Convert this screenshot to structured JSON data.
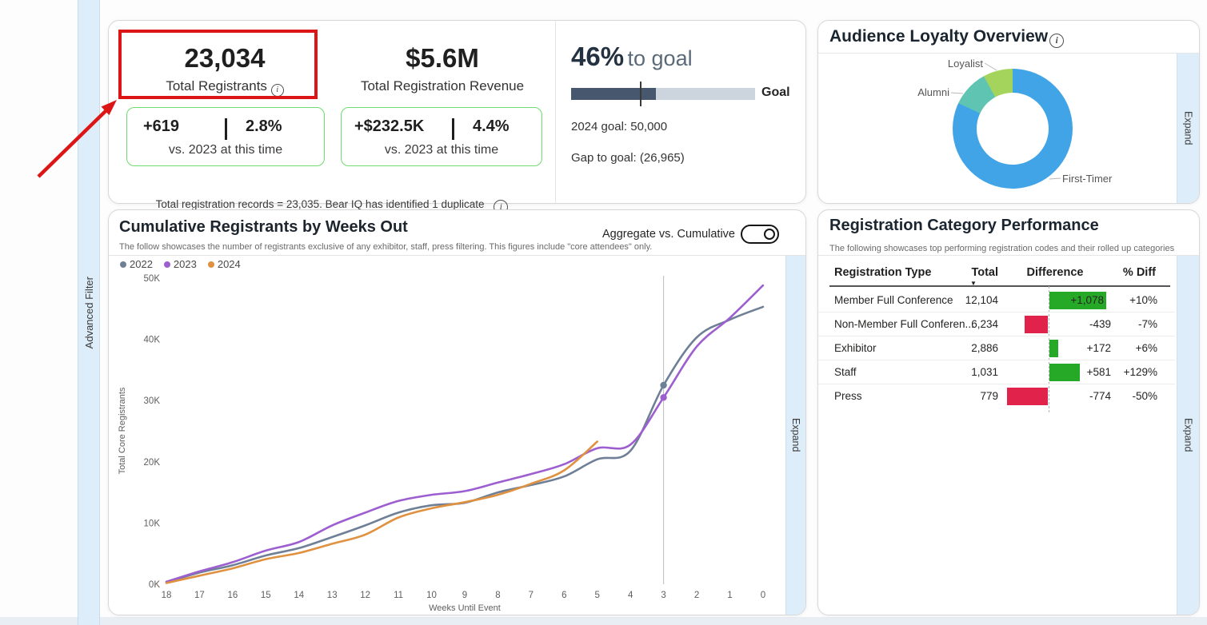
{
  "left_rail": {
    "label": "Advanced Filter"
  },
  "kpi_card": {
    "registrants": {
      "value": "23,034",
      "label": "Total Registrants",
      "delta": "+619",
      "delta_pct": "2.8%",
      "delta_caption": "vs. 2023 at this time"
    },
    "revenue": {
      "value": "$5.6M",
      "label": "Total Registration Revenue",
      "delta": "+$232.5K",
      "delta_pct": "4.4%",
      "delta_caption": "vs. 2023 at this time"
    },
    "footnote": "Total registration records = 23,035. Bear IQ has identified 1 duplicate"
  },
  "goal_card": {
    "percent": "46%",
    "suffix": "to goal",
    "fill_pct": 46,
    "bar_label": "Goal",
    "goal_line": "2024 goal: 50,000",
    "gap_line": "Gap to goal: (26,965)",
    "fill_color": "#47586e",
    "track_color": "#ccd4dd"
  },
  "loyalty_card": {
    "title": "Audience Loyalty Overview",
    "expand_label": "Expand",
    "segments": [
      {
        "label": "First-Timer",
        "value": 82,
        "color": "#41a4e6"
      },
      {
        "label": "Alumni",
        "value": 10,
        "color": "#5fc4b2"
      },
      {
        "label": "Loyalist",
        "value": 8,
        "color": "#a4d45c"
      }
    ]
  },
  "trend_card": {
    "title": "Cumulative Registrants by Weeks Out",
    "subtitle": "The follow showcases the number of registrants exclusive of any exhibitor, staff, press filtering. This figures include \"core attendees\" only.",
    "toggle_label": "Aggregate vs. Cumulative",
    "expand_label": "Expand"
  },
  "category_card": {
    "title": "Registration Category Performance",
    "subtitle": "The following showcases top performing registration codes and their rolled up categories",
    "expand_label": "Expand",
    "columns": [
      "Registration Type",
      "Total",
      "Difference",
      "% Diff"
    ],
    "positive_color": "#26a926",
    "negative_color": "#e1234c",
    "rows": [
      {
        "type": "Member Full Conference",
        "total": "12,104",
        "diff": 1078,
        "diff_label": "+1,078",
        "pct": "+10%",
        "label_in_bar": true
      },
      {
        "type": "Non-Member Full Conferen...",
        "total": "6,234",
        "diff": -439,
        "diff_label": "-439",
        "pct": "-7%"
      },
      {
        "type": "Exhibitor",
        "total": "2,886",
        "diff": 172,
        "diff_label": "+172",
        "pct": "+6%"
      },
      {
        "type": "Staff",
        "total": "1,031",
        "diff": 581,
        "diff_label": "+581",
        "pct": "+129%"
      },
      {
        "type": "Press",
        "total": "779",
        "diff": -774,
        "diff_label": "-774",
        "pct": "-50%"
      }
    ]
  },
  "chart_data": [
    {
      "type": "line",
      "title": "Cumulative Registrants by Weeks Out",
      "xlabel": "Weeks Until Event",
      "ylabel": "Total Core Registrants",
      "units": "thousands",
      "ylim_thousands": [
        0,
        50
      ],
      "yticks": [
        "0K",
        "10K",
        "20K",
        "30K",
        "40K",
        "50K"
      ],
      "x_weeks": [
        18,
        17,
        16,
        15,
        14,
        13,
        12,
        11,
        10,
        9,
        8,
        7,
        6,
        5,
        4,
        3,
        2,
        1,
        0
      ],
      "marker_week": 3,
      "grid": "off",
      "legend_position": "top-left",
      "series": [
        {
          "name": "2022",
          "color": "#6e7f96",
          "values": [
            0.3,
            1.9,
            3.1,
            4.7,
            5.9,
            7.7,
            9.6,
            11.7,
            12.9,
            13.3,
            15.0,
            16.2,
            17.6,
            20.4,
            21.8,
            32.5,
            40.3,
            43.2,
            45.3
          ],
          "marker_point": {
            "week": 3,
            "value": 32.5
          }
        },
        {
          "name": "2023",
          "color": "#9d5fd0",
          "values": [
            0.4,
            2.1,
            3.6,
            5.5,
            6.9,
            9.6,
            11.7,
            13.6,
            14.6,
            15.2,
            16.6,
            18.0,
            19.6,
            22.2,
            22.8,
            30.5,
            38.8,
            43.5,
            48.8
          ],
          "marker_point": {
            "week": 3,
            "value": 30.5
          }
        },
        {
          "name": "2024",
          "color": "#e0913f",
          "values": [
            0.2,
            1.4,
            2.6,
            4.1,
            5.1,
            6.6,
            8.1,
            10.9,
            12.4,
            13.4,
            14.6,
            16.4,
            18.6,
            23.3
          ]
        }
      ]
    },
    {
      "type": "pie",
      "donut": true,
      "title": "Audience Loyalty Overview",
      "labels": [
        "First-Timer",
        "Alumni",
        "Loyalist"
      ],
      "values_pct": [
        82,
        10,
        8
      ]
    }
  ]
}
